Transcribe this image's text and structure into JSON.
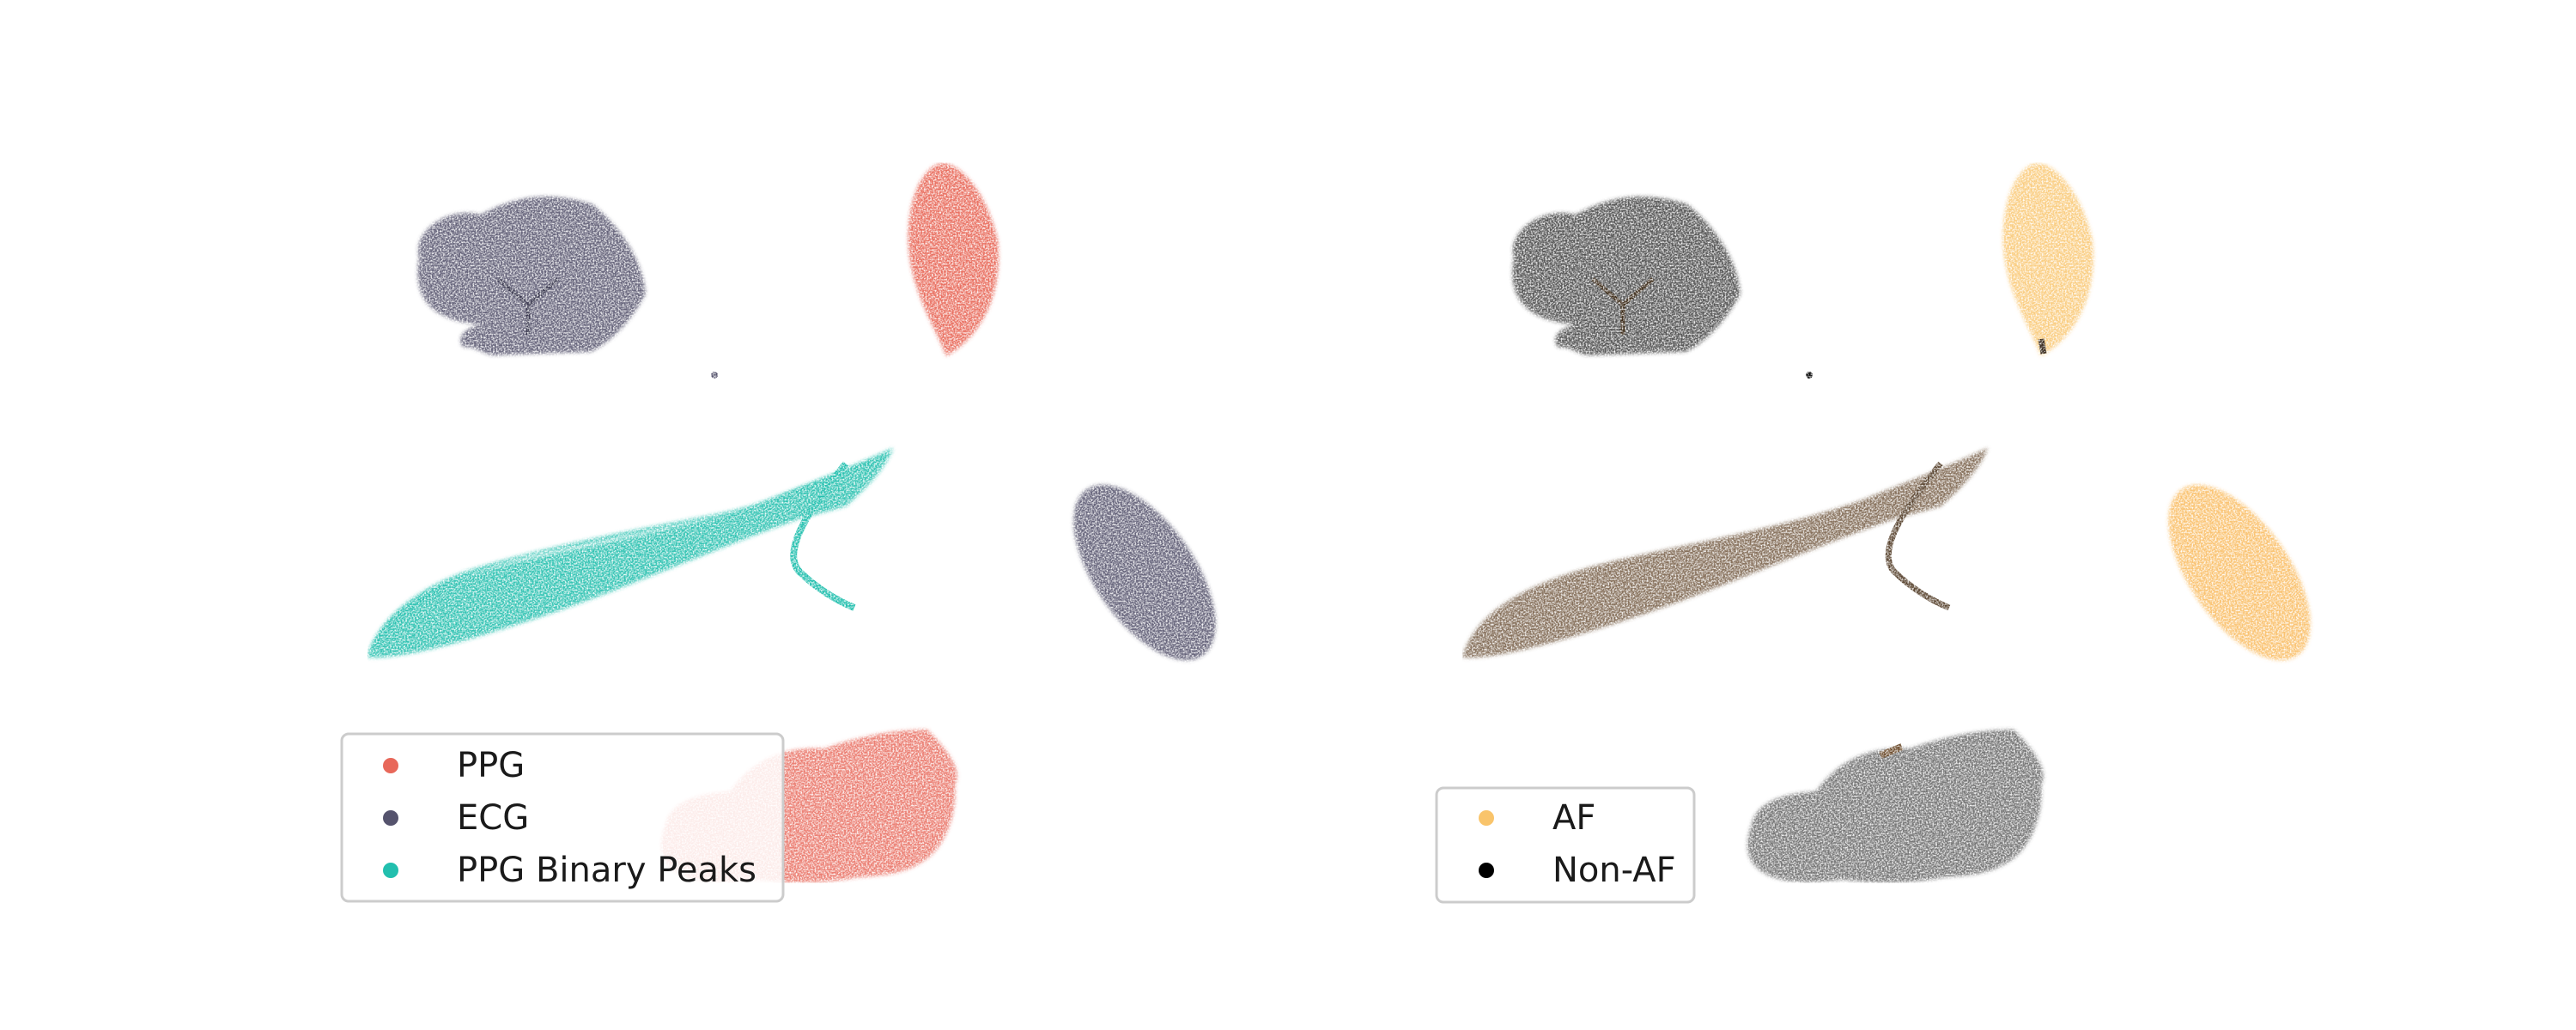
{
  "chart_data": [
    {
      "type": "scatter",
      "panel": "left",
      "grid": false,
      "axes_visible": false,
      "legend": {
        "placement": "lower-left",
        "entries": [
          {
            "label": "PPG",
            "color": "#e8685a"
          },
          {
            "label": "ECG",
            "color": "#55536d"
          },
          {
            "label": "PPG Binary Peaks",
            "color": "#22bfae"
          }
        ]
      },
      "clusters": [
        {
          "series": "ECG",
          "shape": "blob",
          "center": [
            2.2,
            8.0
          ],
          "size": [
            2.6,
            1.8
          ]
        },
        {
          "series": "PPG",
          "shape": "leaf",
          "center": [
            6.7,
            8.1
          ],
          "size": [
            1.0,
            2.3
          ]
        },
        {
          "series": "PPG Binary Peaks",
          "shape": "fin",
          "center": [
            4.3,
            3.9
          ],
          "size": [
            5.8,
            2.4
          ]
        },
        {
          "series": "ECG",
          "shape": "ellipse",
          "center": [
            9.3,
            3.5
          ],
          "size": [
            1.2,
            2.0
          ],
          "tilt": 35
        },
        {
          "series": "PPG",
          "shape": "blob",
          "center": [
            6.0,
            1.2
          ],
          "size": [
            3.3,
            1.8
          ]
        },
        {
          "series": "ECG",
          "shape": "dot",
          "center": [
            4.6,
            6.6
          ]
        }
      ]
    },
    {
      "type": "scatter",
      "panel": "right",
      "grid": false,
      "axes_visible": false,
      "legend": {
        "placement": "lower-left",
        "entries": [
          {
            "label": "AF",
            "color": "#f9c46b"
          },
          {
            "label": "Non-AF",
            "color": "#000000"
          }
        ]
      },
      "clusters": [
        {
          "series": "Non-AF",
          "shape": "blob",
          "center": [
            2.2,
            8.0
          ],
          "size": [
            2.6,
            1.8
          ]
        },
        {
          "series": "AF",
          "shape": "leaf",
          "center": [
            6.7,
            8.1
          ],
          "size": [
            1.0,
            2.3
          ]
        },
        {
          "series": "mixed",
          "shape": "fin",
          "center": [
            4.3,
            3.9
          ],
          "size": [
            5.8,
            2.4
          ]
        },
        {
          "series": "AF",
          "shape": "ellipse",
          "center": [
            9.3,
            3.5
          ],
          "size": [
            1.2,
            2.0
          ],
          "tilt": 35
        },
        {
          "series": "Non-AF",
          "shape": "blob",
          "center": [
            6.0,
            1.2
          ],
          "size": [
            3.3,
            1.8
          ]
        },
        {
          "series": "Non-AF",
          "shape": "dot",
          "center": [
            4.6,
            6.6
          ]
        }
      ]
    }
  ]
}
